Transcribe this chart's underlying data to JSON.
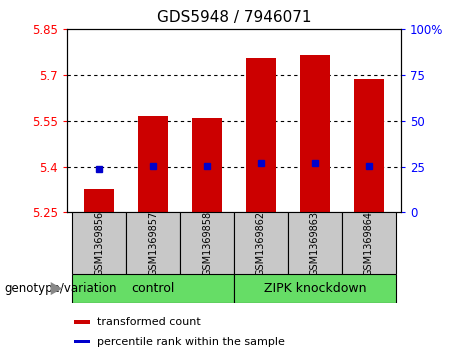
{
  "title": "GDS5948 / 7946071",
  "samples": [
    "GSM1369856",
    "GSM1369857",
    "GSM1369858",
    "GSM1369862",
    "GSM1369863",
    "GSM1369864"
  ],
  "bar_values": [
    5.325,
    5.565,
    5.56,
    5.755,
    5.765,
    5.685
  ],
  "percentile_values": [
    5.393,
    5.402,
    5.402,
    5.413,
    5.413,
    5.402
  ],
  "bar_bottom": 5.25,
  "ylim": [
    5.25,
    5.85
  ],
  "yticks_left": [
    5.25,
    5.4,
    5.55,
    5.7,
    5.85
  ],
  "yticks_right": [
    0,
    25,
    50,
    75,
    100
  ],
  "bar_color": "#CC0000",
  "percentile_color": "#0000CC",
  "bar_width": 0.55,
  "legend_items": [
    {
      "label": "transformed count",
      "color": "#CC0000"
    },
    {
      "label": "percentile rank within the sample",
      "color": "#0000CC"
    }
  ],
  "group_control_label": "control",
  "group_zipk_label": "ZIPK knockdown",
  "group_color": "#66DD66",
  "genotype_label": "genotype/variation",
  "sample_box_color": "#c8c8c8"
}
